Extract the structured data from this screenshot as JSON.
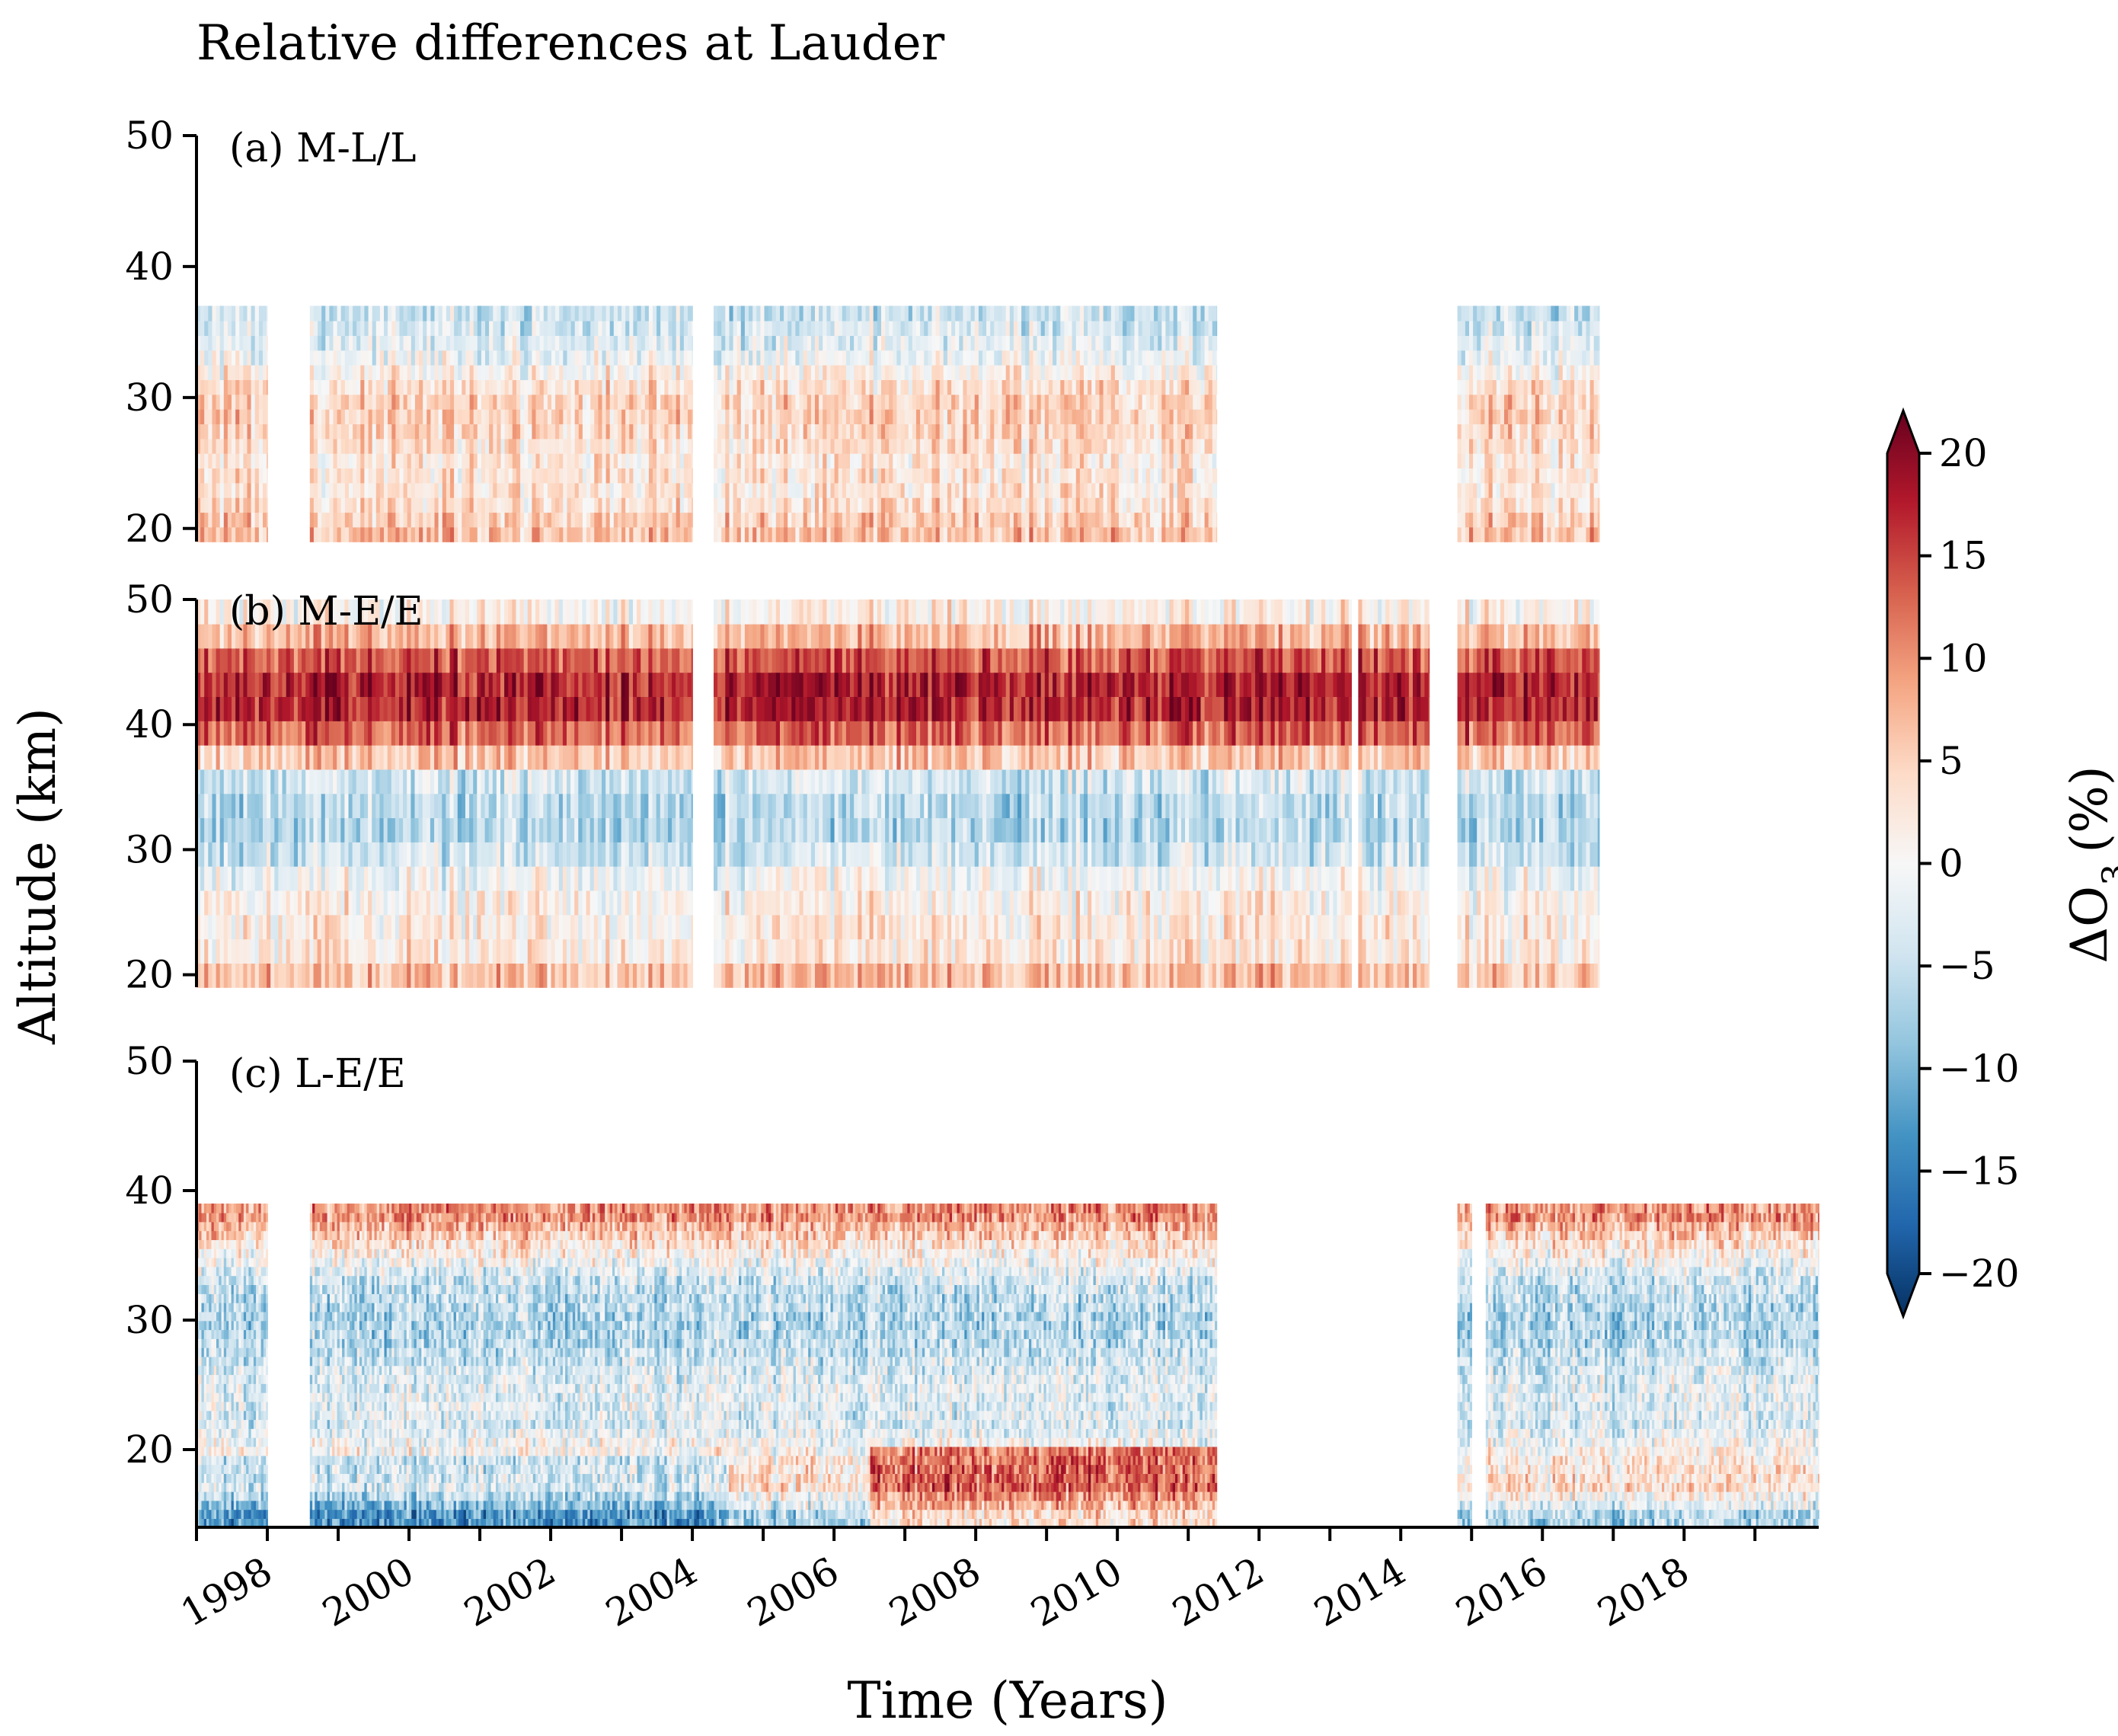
{
  "chart_data": {
    "type": "heatmap",
    "title": "Relative differences at Lauder",
    "xlabel": "Time (Years)",
    "ylabel": "Altitude (km)",
    "x_ticks": [
      "1998",
      "2000",
      "2002",
      "2004",
      "2006",
      "2008",
      "2010",
      "2012",
      "2014",
      "2016",
      "2018"
    ],
    "xlim": [
      1997.0,
      2019.9
    ],
    "colorbar": {
      "label": "ΔO3 (%)",
      "label_base": "ΔO",
      "label_sub": "3",
      "label_unit": "(%)",
      "range": [
        -20,
        20
      ],
      "ticks": [
        "20",
        "15",
        "10",
        "5",
        "0",
        "−5",
        "−10",
        "−15",
        "−20"
      ],
      "tick_values": [
        20,
        15,
        10,
        5,
        0,
        -5,
        -10,
        -15,
        -20
      ],
      "extend": "both",
      "colormap": "RdBu_r",
      "colors": [
        "#053061",
        "#2166ac",
        "#4393c3",
        "#92c5de",
        "#d1e5f0",
        "#f7f7f7",
        "#fddbc7",
        "#f4a582",
        "#d6604d",
        "#b2182b",
        "#67001f"
      ]
    },
    "panels": [
      {
        "label": "(a) M-L/L",
        "ylim": [
          19,
          50
        ],
        "y_ticks": [
          "50",
          "40",
          "30",
          "20"
        ],
        "y_tick_values": [
          50,
          40,
          30,
          20
        ],
        "data_altitude_range": [
          19,
          37
        ],
        "data_periods": [
          [
            1997.0,
            1998.0
          ],
          [
            1998.6,
            2004.0
          ],
          [
            2004.3,
            2011.4
          ],
          [
            2014.8,
            2016.8
          ]
        ],
        "profile_pct": [
          {
            "altitude": 20,
            "value": 6
          },
          {
            "altitude": 22,
            "value": 3
          },
          {
            "altitude": 25,
            "value": 2
          },
          {
            "altitude": 27,
            "value": 4
          },
          {
            "altitude": 29,
            "value": 5
          },
          {
            "altitude": 31,
            "value": 3
          },
          {
            "altitude": 33,
            "value": -1
          },
          {
            "altitude": 35,
            "value": -3
          },
          {
            "altitude": 36.5,
            "value": -4
          }
        ]
      },
      {
        "label": "(b) M-E/E",
        "ylim": [
          19,
          50
        ],
        "y_ticks": [
          "50",
          "40",
          "30",
          "20"
        ],
        "y_tick_values": [
          50,
          40,
          30,
          20
        ],
        "data_altitude_range": [
          19,
          50
        ],
        "data_periods": [
          [
            1997.0,
            2004.0
          ],
          [
            2004.3,
            2013.3
          ],
          [
            2013.4,
            2014.4
          ],
          [
            2014.8,
            2016.8
          ]
        ],
        "profile_pct": [
          {
            "altitude": 20,
            "value": 6
          },
          {
            "altitude": 22,
            "value": 2
          },
          {
            "altitude": 25,
            "value": 2
          },
          {
            "altitude": 28,
            "value": -1
          },
          {
            "altitude": 30,
            "value": -4
          },
          {
            "altitude": 32,
            "value": -6
          },
          {
            "altitude": 34,
            "value": -5
          },
          {
            "altitude": 36,
            "value": -3
          },
          {
            "altitude": 38,
            "value": 9
          },
          {
            "altitude": 40,
            "value": 13
          },
          {
            "altitude": 42,
            "value": 17
          },
          {
            "altitude": 44,
            "value": 15
          },
          {
            "altitude": 46,
            "value": 11
          },
          {
            "altitude": 48,
            "value": 3
          },
          {
            "altitude": 50,
            "value": 0
          }
        ]
      },
      {
        "label": "(c) L-E/E",
        "ylim": [
          14,
          50
        ],
        "y_ticks": [
          "50",
          "40",
          "30",
          "20"
        ],
        "y_tick_values": [
          50,
          40,
          30,
          20
        ],
        "data_altitude_range": [
          14,
          39
        ],
        "data_periods": [
          [
            1997.0,
            1998.0
          ],
          [
            1998.6,
            2011.4
          ],
          [
            2014.8,
            2015.0
          ],
          [
            2015.2,
            2019.9
          ]
        ],
        "profile_pct": [
          {
            "altitude": 15,
            "value": -6
          },
          {
            "altitude": 17,
            "value": 3
          },
          {
            "altitude": 19,
            "value": 2
          },
          {
            "altitude": 22,
            "value": -3
          },
          {
            "altitude": 25,
            "value": -2
          },
          {
            "altitude": 28,
            "value": -5
          },
          {
            "altitude": 30,
            "value": -6
          },
          {
            "altitude": 33,
            "value": -4
          },
          {
            "altitude": 36,
            "value": 3
          },
          {
            "altitude": 38,
            "value": 9
          }
        ]
      }
    ]
  }
}
